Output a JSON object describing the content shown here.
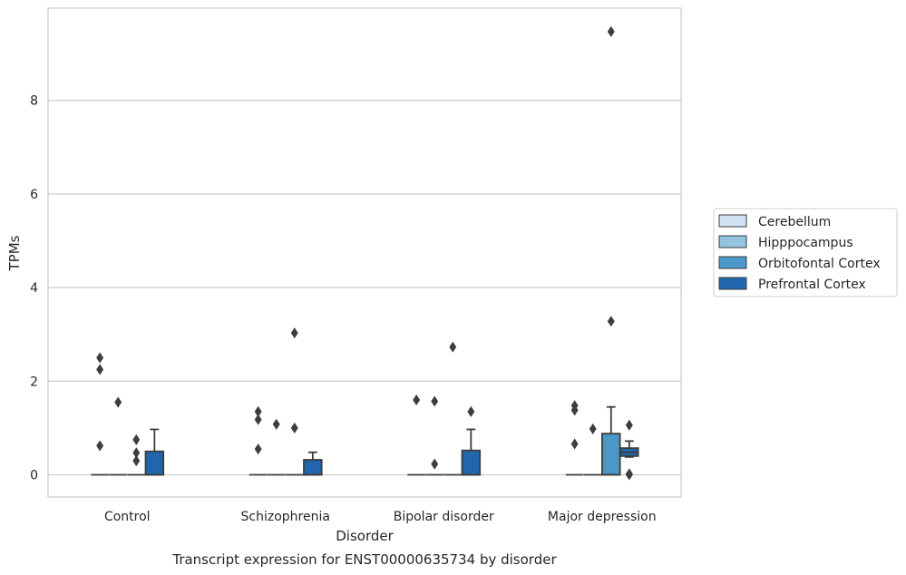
{
  "chart_data": {
    "type": "box",
    "caption": "Transcript expression for ENST00000635734 by disorder",
    "xlabel": "Disorder",
    "ylabel": "TPMs",
    "ylim": [
      -0.45,
      9.8
    ],
    "yticks": [
      0,
      2,
      4,
      6,
      8
    ],
    "categories": [
      "Control",
      "Schizophrenia",
      "Bipolar disorder",
      "Major depression"
    ],
    "grid": true,
    "legend_position": "right",
    "series": [
      {
        "name": "Cerebellum",
        "color": "#d0e1f2",
        "boxes": [
          {
            "q1": 0,
            "median": 0,
            "q3": 0,
            "whislo": 0,
            "whishi": 0,
            "fliers": [
              0.62,
              2.25,
              2.5
            ]
          },
          {
            "q1": 0,
            "median": 0,
            "q3": 0,
            "whislo": 0,
            "whishi": 0,
            "fliers": [
              0.55,
              1.18,
              1.35
            ]
          },
          {
            "q1": 0,
            "median": 0,
            "q3": 0,
            "whislo": 0,
            "whishi": 0,
            "fliers": [
              1.6
            ]
          },
          {
            "q1": 0,
            "median": 0,
            "q3": 0,
            "whislo": 0,
            "whishi": 0,
            "fliers": [
              0.66,
              1.38,
              1.48
            ]
          }
        ]
      },
      {
        "name": "Hipppocampus",
        "color": "#94c4df",
        "boxes": [
          {
            "q1": 0,
            "median": 0,
            "q3": 0,
            "whislo": 0,
            "whishi": 0,
            "fliers": [
              1.55
            ]
          },
          {
            "q1": 0,
            "median": 0,
            "q3": 0,
            "whislo": 0,
            "whishi": 0,
            "fliers": [
              1.08
            ]
          },
          {
            "q1": 0,
            "median": 0,
            "q3": 0,
            "whislo": 0,
            "whishi": 0,
            "fliers": [
              0.23,
              1.57
            ]
          },
          {
            "q1": 0,
            "median": 0,
            "q3": 0,
            "whislo": 0,
            "whishi": 0,
            "fliers": [
              0.98
            ]
          }
        ]
      },
      {
        "name": "Orbitofontal Cortex",
        "color": "#4a98c9",
        "boxes": [
          {
            "q1": 0,
            "median": 0,
            "q3": 0,
            "whislo": 0,
            "whishi": 0,
            "fliers": [
              0.3,
              0.47,
              0.75
            ]
          },
          {
            "q1": 0,
            "median": 0,
            "q3": 0,
            "whislo": 0,
            "whishi": 0,
            "fliers": [
              1.0,
              3.03
            ]
          },
          {
            "q1": 0,
            "median": 0,
            "q3": 0,
            "whislo": 0,
            "whishi": 0,
            "fliers": [
              2.73
            ]
          },
          {
            "q1": 0,
            "median": 0,
            "q3": 0.88,
            "whislo": 0,
            "whishi": 1.45,
            "fliers": [
              3.28,
              9.47
            ]
          }
        ]
      },
      {
        "name": "Prefrontal Cortex",
        "color": "#2166ac",
        "boxes": [
          {
            "q1": 0,
            "median": 0,
            "q3": 0.5,
            "whislo": 0,
            "whishi": 0.97,
            "fliers": []
          },
          {
            "q1": 0,
            "median": 0,
            "q3": 0.32,
            "whislo": 0,
            "whishi": 0.48,
            "fliers": []
          },
          {
            "q1": 0,
            "median": 0,
            "q3": 0.52,
            "whislo": 0,
            "whishi": 0.97,
            "fliers": [
              1.35
            ]
          },
          {
            "q1": 0.4,
            "median": 0.48,
            "q3": 0.57,
            "whislo": 0.38,
            "whishi": 0.72,
            "fliers": [
              0.0,
              0.02,
              1.06
            ]
          }
        ]
      }
    ]
  }
}
